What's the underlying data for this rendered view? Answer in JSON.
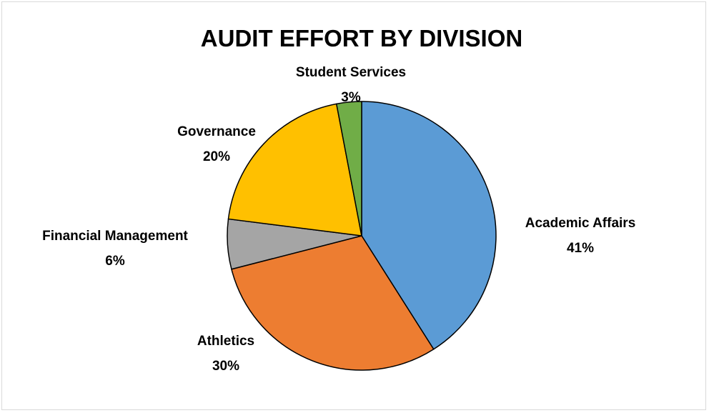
{
  "chart_data": {
    "type": "pie",
    "title": "AUDIT EFFORT BY DIVISION",
    "start_angle_deg": 0,
    "direction": "clockwise",
    "categories": [
      "Academic Affairs",
      "Athletics",
      "Financial Management",
      "Governance",
      "Student Services"
    ],
    "values": [
      41,
      30,
      6,
      20,
      3
    ],
    "value_labels": [
      "41%",
      "30%",
      "6%",
      "20%",
      "3%"
    ],
    "colors": [
      "#5b9bd5",
      "#ed7d31",
      "#a5a5a5",
      "#ffc000",
      "#70ad47"
    ],
    "legend": "none",
    "data_labels": "outside"
  }
}
